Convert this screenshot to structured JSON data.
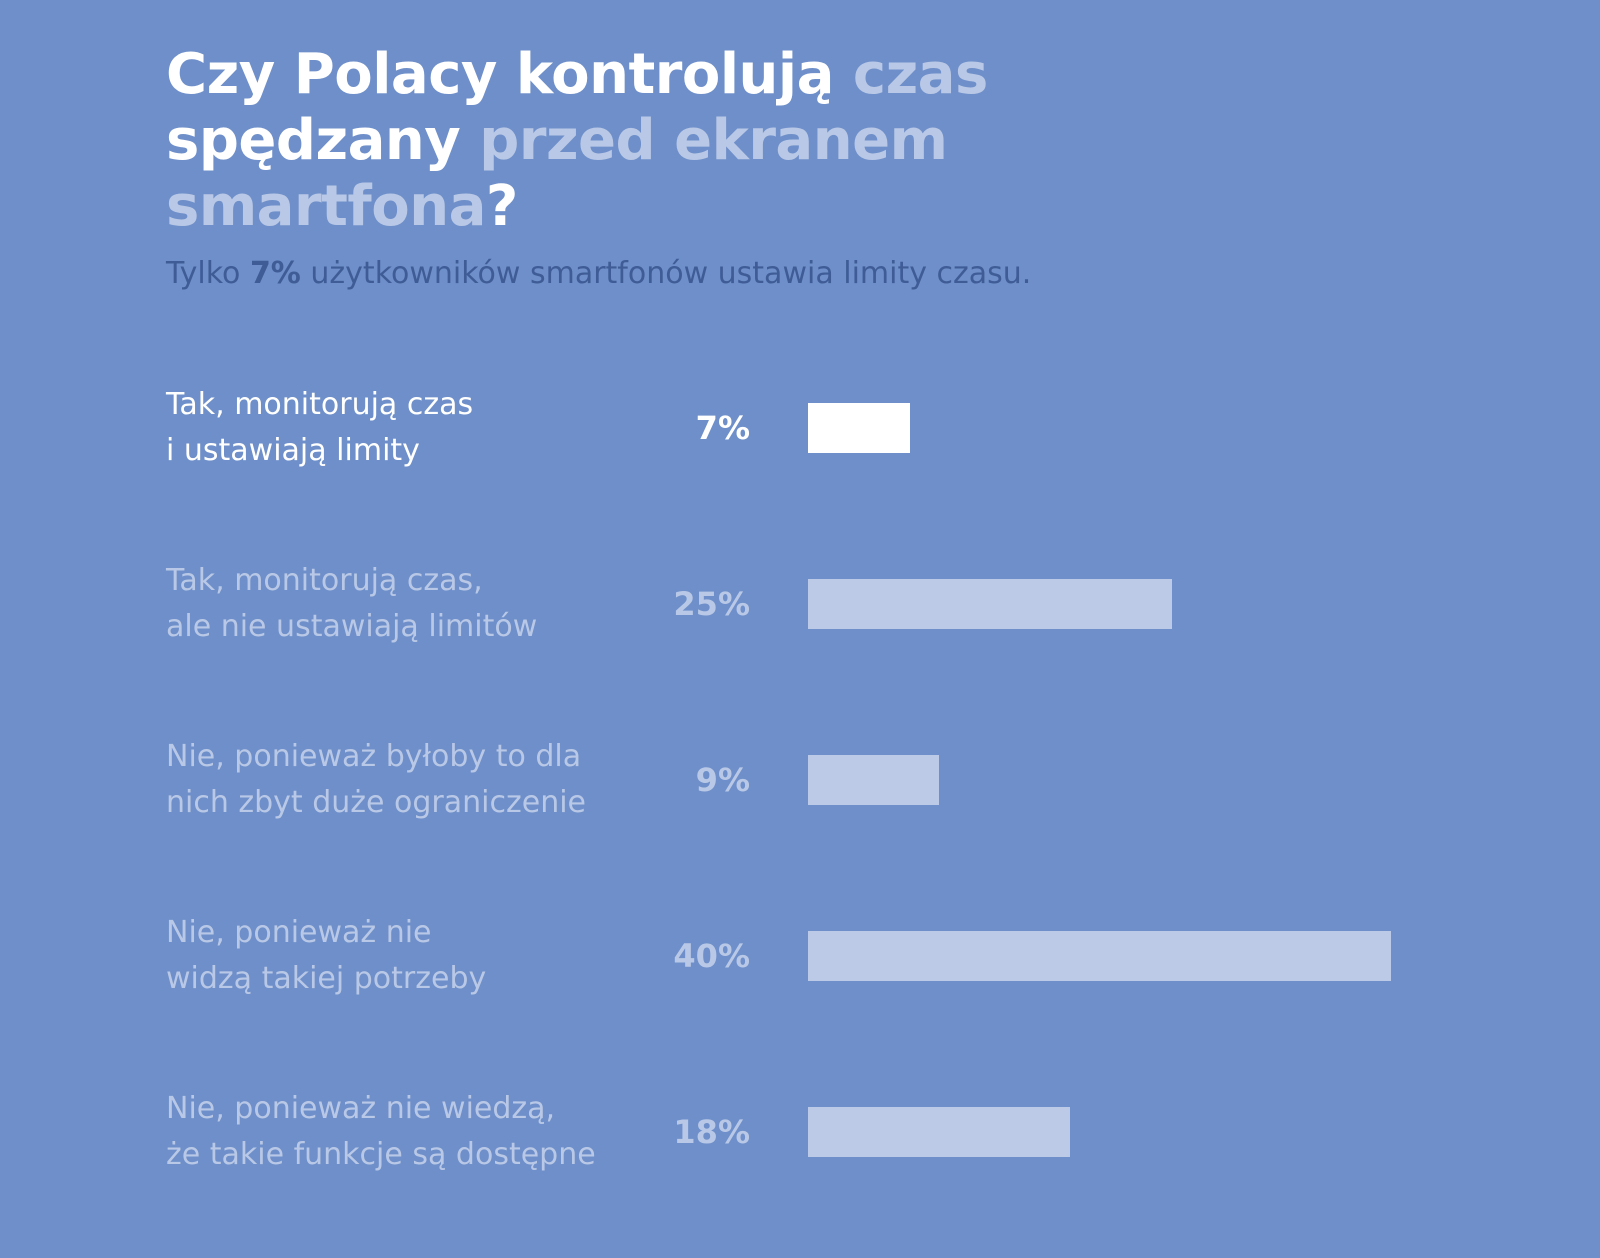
{
  "chart_data": {
    "type": "bar",
    "orientation": "horizontal",
    "title_parts": [
      {
        "text": "Czy Polacy kontrolują ",
        "muted": false
      },
      {
        "text": "czas",
        "muted": true
      },
      {
        "text": "\n",
        "muted": false
      },
      {
        "text": "spędzany ",
        "muted": false
      },
      {
        "text": "przed ekranem smartfona",
        "muted": true
      },
      {
        "text": "?",
        "muted": false
      }
    ],
    "subtitle_parts": [
      {
        "text": "Tylko ",
        "strong": false
      },
      {
        "text": "7%",
        "strong": true
      },
      {
        "text": " użytkowników smartfonów ustawia limity czasu.",
        "strong": false
      }
    ],
    "categories": [
      [
        "Tak, monitorują czas",
        "i ustawiają limity"
      ],
      [
        "Tak, monitorują czas,",
        "ale nie ustawiają limitów"
      ],
      [
        "Nie, ponieważ byłoby to dla",
        "nich zbyt duże ograniczenie"
      ],
      [
        "Nie, ponieważ nie",
        "widzą takiej potrzeby"
      ],
      [
        "Nie, ponieważ nie wiedzą,",
        "że takie funkcje są dostępne"
      ]
    ],
    "values": [
      7,
      25,
      9,
      40,
      18
    ],
    "value_labels": [
      "7%",
      "25%",
      "9%",
      "40%",
      "18%"
    ],
    "highlighted_index": 0,
    "xlim": [
      0,
      40
    ],
    "grid": false,
    "colors": {
      "background": "#6e8fc9",
      "bar": "#bccae7",
      "bar_highlight": "#ffffff",
      "text_muted": "#b9c8e6",
      "text_highlight": "#ffffff",
      "subtitle": "#3f5c97"
    }
  }
}
